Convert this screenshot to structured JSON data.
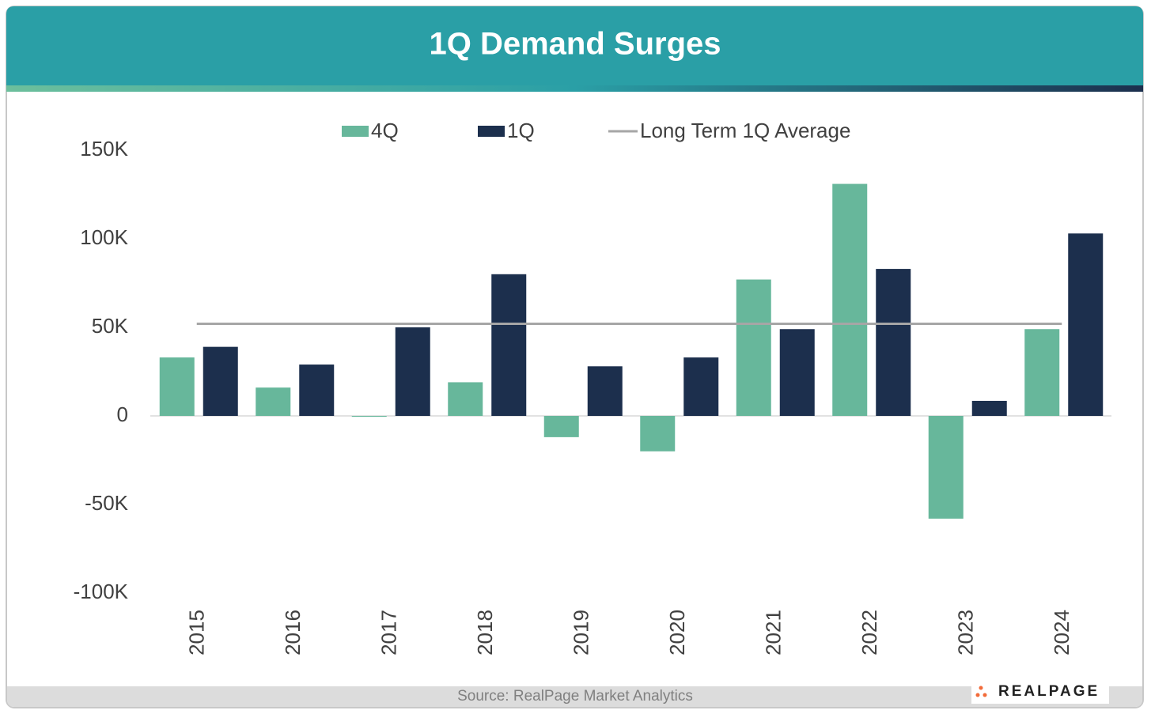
{
  "chart_data": {
    "type": "bar",
    "title": "1Q Demand Surges",
    "categories": [
      "2015",
      "2016",
      "2017",
      "2018",
      "2019",
      "2020",
      "2021",
      "2022",
      "2023",
      "2024"
    ],
    "series": [
      {
        "name": "4Q",
        "color": "#67b79b",
        "values": [
          33000,
          16000,
          -500,
          19000,
          -12000,
          -20000,
          77000,
          131000,
          -58000,
          49000
        ]
      },
      {
        "name": "1Q",
        "color": "#1c2f4d",
        "values": [
          39000,
          29000,
          50000,
          80000,
          28000,
          33000,
          49000,
          83000,
          8500,
          103000
        ]
      }
    ],
    "average": {
      "name": "Long Term 1Q Average",
      "value": 52000,
      "color": "#a6a6a6"
    },
    "ylim": [
      -100000,
      150000
    ],
    "yticks": [
      {
        "value": -100000,
        "label": "-100K"
      },
      {
        "value": -50000,
        "label": "-50K"
      },
      {
        "value": 0,
        "label": "0"
      },
      {
        "value": 50000,
        "label": "50K"
      },
      {
        "value": 100000,
        "label": "100K"
      },
      {
        "value": 150000,
        "label": "150K"
      }
    ],
    "grid": false
  },
  "footer": {
    "source": "Source: RealPage Market Analytics",
    "logo": "REALPAGE"
  }
}
